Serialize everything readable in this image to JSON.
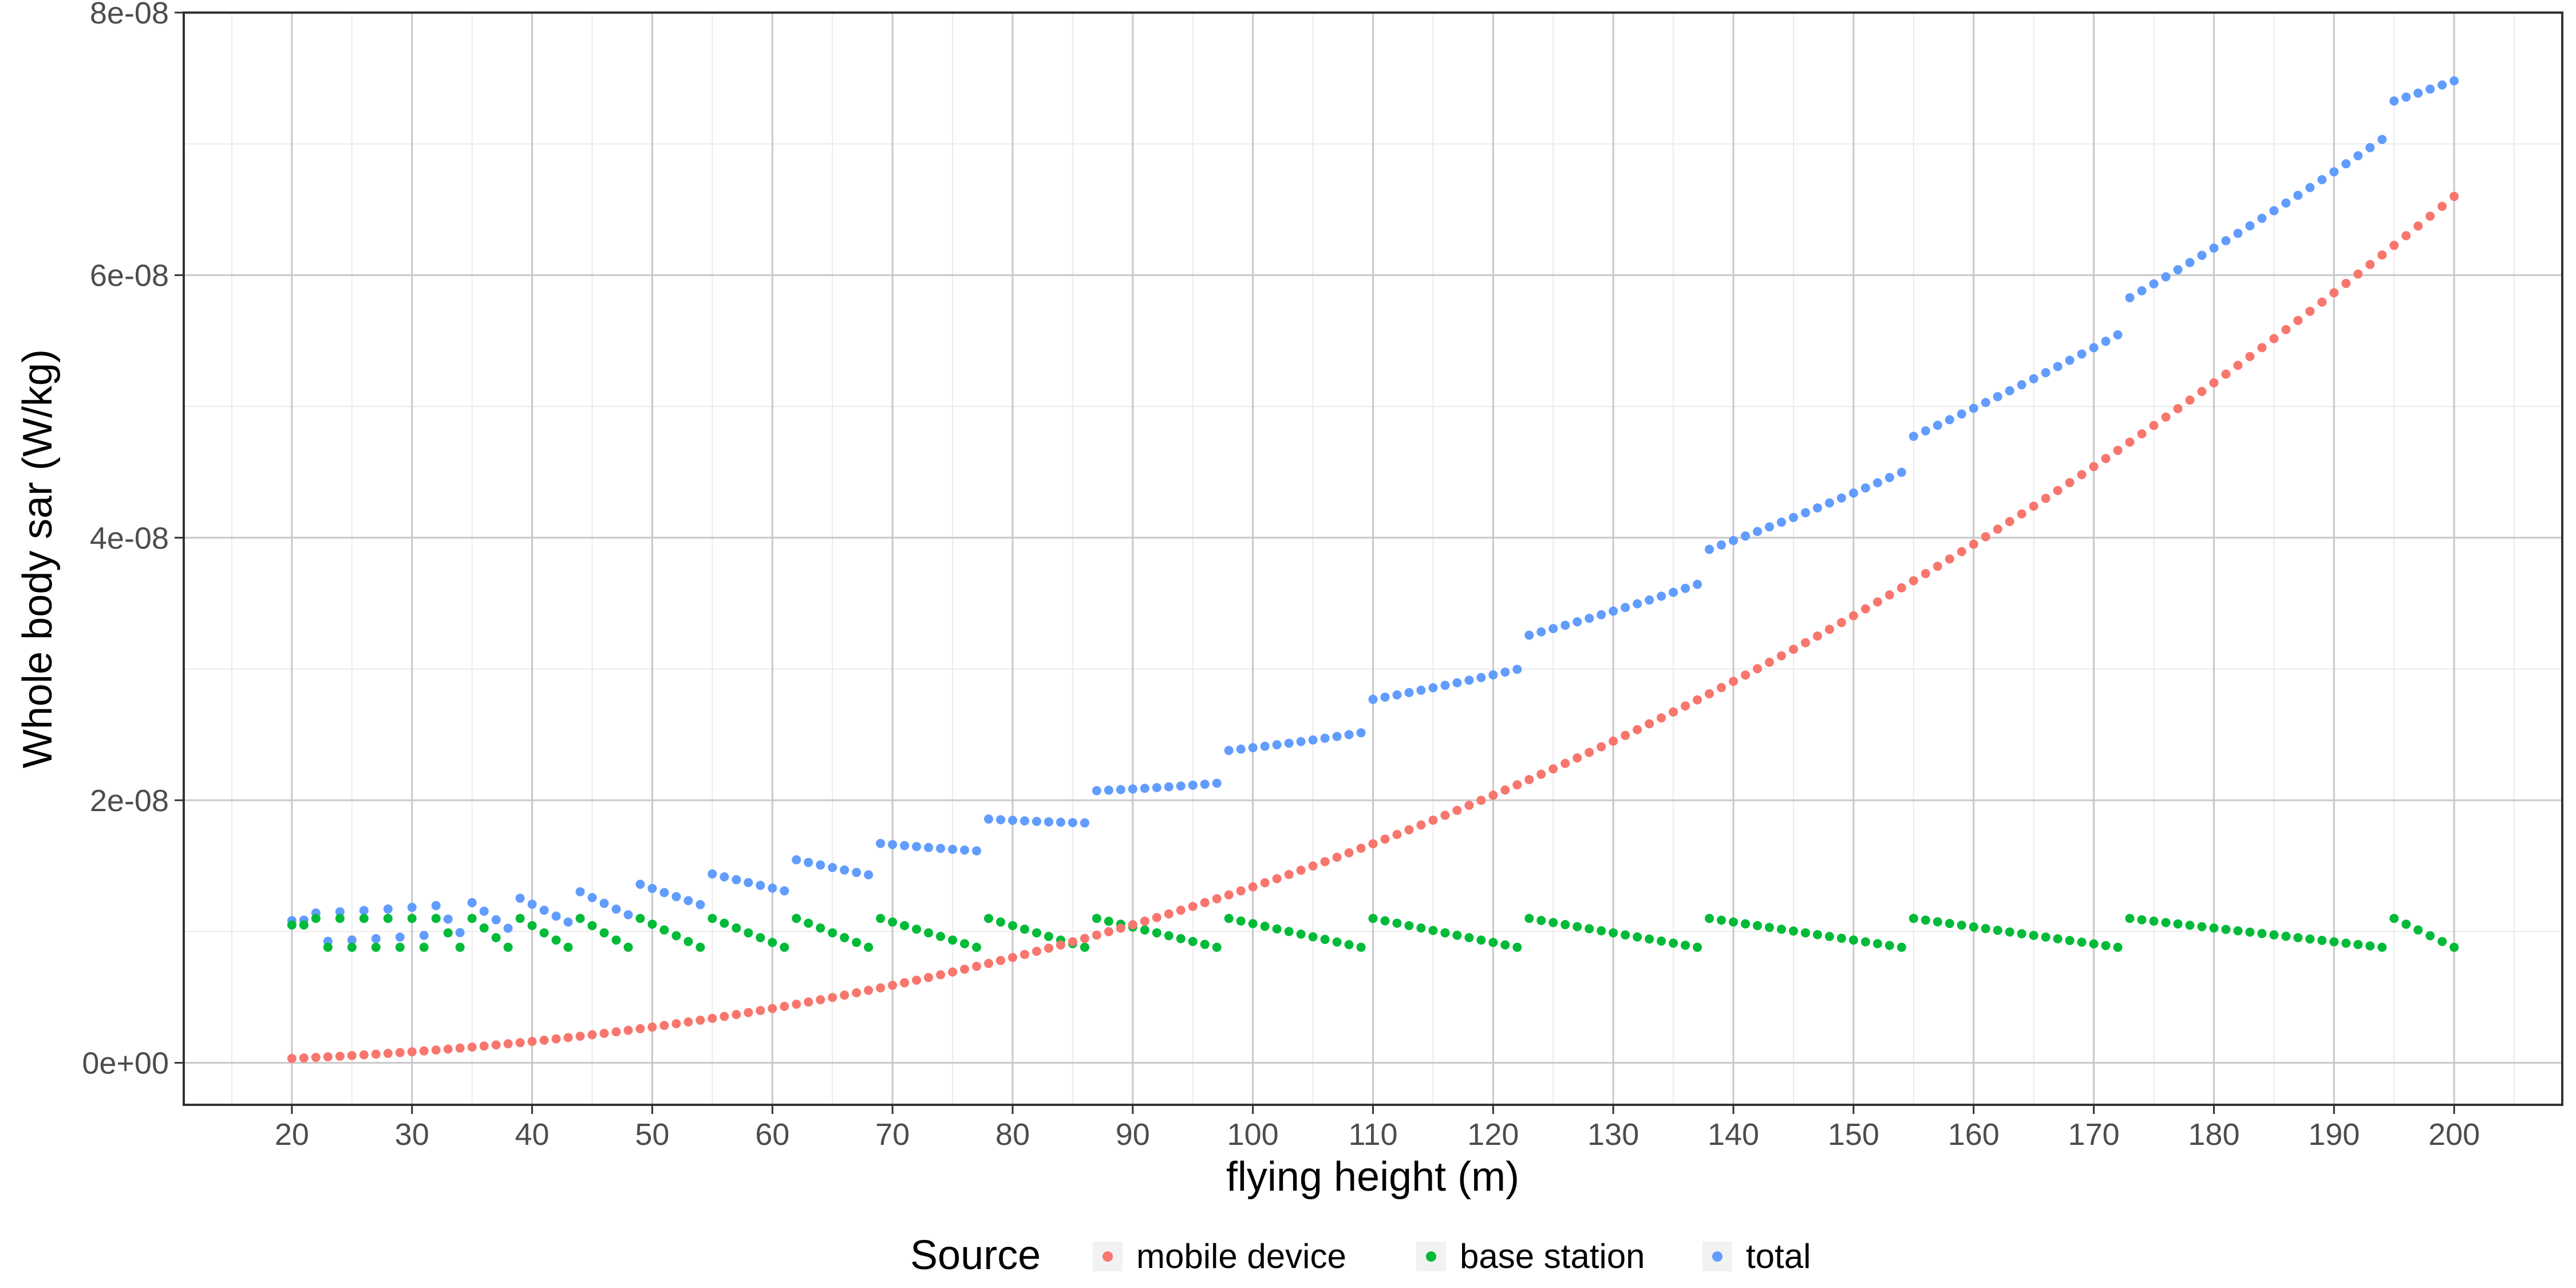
{
  "chart_data": {
    "type": "scatter",
    "xlabel": "flying height (m)",
    "ylabel": "Whole body sar (W/kg)",
    "xlim": [
      11,
      209
    ],
    "ylim": [
      -3.2e-09,
      8e-08
    ],
    "x_ticks": [
      20,
      30,
      40,
      50,
      60,
      70,
      80,
      90,
      100,
      110,
      120,
      130,
      140,
      150,
      160,
      170,
      180,
      190,
      200
    ],
    "x_tick_labels": [
      "20",
      "30",
      "40",
      "50",
      "60",
      "70",
      "80",
      "90",
      "100",
      "110",
      "120",
      "130",
      "140",
      "150",
      "160",
      "170",
      "180",
      "190",
      "200"
    ],
    "x_minor_step": 5,
    "y_ticks": [
      0,
      2e-08,
      4e-08,
      6e-08,
      8e-08
    ],
    "y_tick_labels": [
      "0e+00",
      "2e-08",
      "4e-08",
      "6e-08",
      "8e-08"
    ],
    "y_minor": [
      1e-08,
      3e-08,
      5e-08,
      7e-08
    ],
    "grid": true,
    "legend": {
      "title": "Source",
      "position": "bottom",
      "entries": [
        {
          "label": "mobile device",
          "color": "#F8766D"
        },
        {
          "label": "base station",
          "color": "#00BA38"
        },
        {
          "label": "total",
          "color": "#619CFF"
        }
      ]
    },
    "x_step": 1,
    "series": [
      {
        "name": "mobile device",
        "color": "#F8766D",
        "model": "y = 6.6e-8 * (x/200)^2.3",
        "x_range": [
          20,
          200
        ],
        "values_at_ticks": {
          "20": 7e-10,
          "50": 4.1e-09,
          "80": 1.05e-08,
          "100": 1.6e-08,
          "120": 2.45e-08,
          "140": 3.15e-08,
          "160": 4.4e-08,
          "180": 5.25e-08,
          "200": 6.6e-08
        }
      },
      {
        "name": "base station",
        "color": "#00BA38",
        "segments": [
          [
            20,
            20
          ],
          [
            21,
            21
          ],
          [
            22,
            23
          ],
          [
            24,
            25
          ],
          [
            26,
            27
          ],
          [
            28,
            29
          ],
          [
            30,
            31
          ],
          [
            32,
            34
          ],
          [
            35,
            38
          ],
          [
            39,
            43
          ],
          [
            44,
            48
          ],
          [
            49,
            54
          ],
          [
            55,
            61
          ],
          [
            62,
            68
          ],
          [
            69,
            77
          ],
          [
            78,
            86
          ],
          [
            87,
            97
          ],
          [
            98,
            109
          ],
          [
            110,
            122
          ],
          [
            123,
            137
          ],
          [
            138,
            154
          ],
          [
            155,
            172
          ],
          [
            173,
            194
          ],
          [
            195,
            200
          ]
        ],
        "segment_start_value": 1.1e-08,
        "segment_end_value": 8.8e-09
      },
      {
        "name": "total",
        "color": "#619CFF",
        "definition": "mobile device + base station"
      }
    ]
  }
}
